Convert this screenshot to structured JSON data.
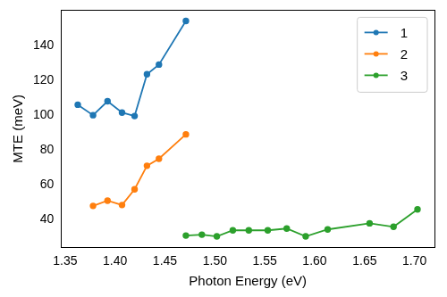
{
  "chart_data": {
    "type": "line",
    "x_label": "Photon Energy (eV)",
    "y_label": "MTE (meV)",
    "xlim": [
      1.346,
      1.72
    ],
    "xticks": [
      1.35,
      {
        "value": 1.4,
        "label": "1.40"
      },
      1.45,
      {
        "value": 1.5,
        "label": "1.50"
      },
      1.55,
      {
        "value": 1.6,
        "label": "1.60"
      },
      1.65,
      {
        "value": 1.7,
        "label": "1.70"
      }
    ],
    "ylim": [
      24.3,
      160.2
    ],
    "yticks": [
      40,
      60,
      80,
      100,
      120,
      140
    ],
    "grid": false,
    "legend": "upper right",
    "marker": "circle",
    "series": [
      {
        "name": "1",
        "color": "#1f77b4",
        "x": [
          1.3627,
          1.378,
          1.3925,
          1.407,
          1.4196,
          1.432,
          1.444,
          1.471
        ],
        "values": [
          106,
          100,
          108,
          101.5,
          99.5,
          123.5,
          129,
          154
        ]
      },
      {
        "name": "2",
        "color": "#ff7f0e",
        "x": [
          1.378,
          1.3925,
          1.407,
          1.4196,
          1.432,
          1.444,
          1.471
        ],
        "values": [
          48,
          51,
          48.5,
          57.5,
          71,
          75,
          89
        ]
      },
      {
        "name": "3",
        "color": "#2ca02c",
        "x": [
          1.471,
          1.487,
          1.502,
          1.518,
          1.534,
          1.553,
          1.572,
          1.591,
          1.613,
          1.655,
          1.679,
          1.703
        ],
        "values": [
          31,
          31.5,
          30.5,
          34,
          34,
          34,
          35,
          30.5,
          34.5,
          38,
          36,
          46
        ]
      }
    ]
  }
}
